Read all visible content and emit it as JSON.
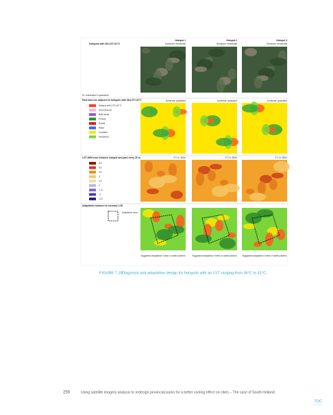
{
  "figure": {
    "columns": [
      {
        "title": "Hotspot 1",
        "dominant": "Dominant: residential",
        "park": "Dominant: grassland",
        "distance": "4°C in 450m",
        "suggestion": "Suggested adaptation: forest or water patches"
      },
      {
        "title": "Hotspot 2",
        "dominant": "Dominant: residential",
        "park": "Dominant: grassland",
        "distance": "4°C in 480m",
        "suggestion": "Suggested adaptation: forest or water patches"
      },
      {
        "title": "Hotspot 3",
        "dominant": "Dominant: residential",
        "park": "Dominant: grassland",
        "distance": "3°C in 450m",
        "suggestion": "Suggested adaptation: forest or water patches"
      }
    ],
    "rows": [
      {
        "title": "Hotspots with 36<LST<41°C",
        "note": "R= residential  G=grassland"
      },
      {
        "title": "Park land use adjacent to hotspots with 36<LST<41°C",
        "legend": [
          "Hotspot with LST>41°C",
          "Greenhouses",
          "Built areas",
          "Forests",
          "Roads",
          "Water",
          "Cropland",
          "Grassland"
        ]
      },
      {
        "title": "LST difference between hotspot and park every 30 m",
        "legend": [
          "8.5",
          "6.5",
          "4.5",
          "3",
          "1.5",
          "0",
          "-1.5",
          "-3",
          "-4.5"
        ]
      },
      {
        "title": "Adaptation measure to increase LCE",
        "legend": [
          "Adaptation area"
        ]
      }
    ],
    "caption_label": "FIGURE 7.19",
    "caption": "Diagnosis and adaptation design for hotspots with an LST ranging from 36°C to 41°C."
  },
  "footer": {
    "page": "259",
    "text": "Using satellite imagery analysis to redesign provincial parks for a better cooling effect on cities – The case of South Holland",
    "toc": "TOC"
  }
}
